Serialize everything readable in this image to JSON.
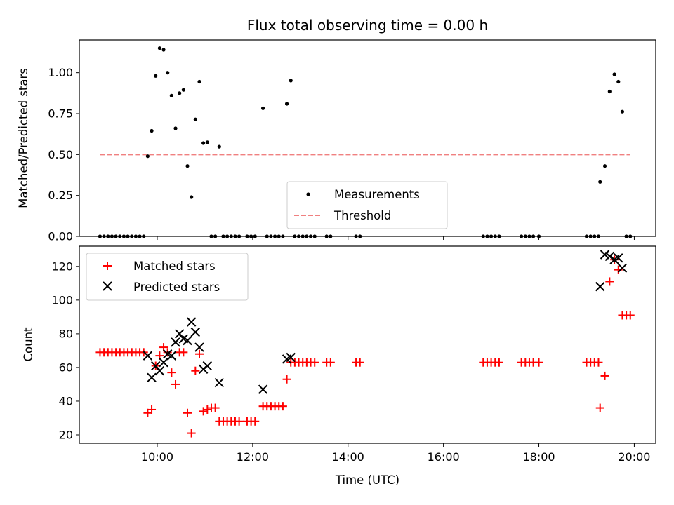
{
  "chart_data": [
    {
      "type": "scatter",
      "title": "Flux total observing time = 0.00 h",
      "xlabel": "",
      "ylabel": "Matched/Predicted stars",
      "ylim": [
        0,
        1.2
      ],
      "yticks": [
        "0.00",
        "0.25",
        "0.50",
        "0.75",
        "1.00"
      ],
      "xlim": [
        "08:22",
        "20:27"
      ],
      "legend_location": "lower-center",
      "series": [
        {
          "name": "Measurements",
          "marker": "dot",
          "color": "#000000",
          "points": [
            [
              "08:48",
              0
            ],
            [
              "08:53",
              0
            ],
            [
              "08:58",
              0
            ],
            [
              "09:03",
              0
            ],
            [
              "09:08",
              0
            ],
            [
              "09:13",
              0
            ],
            [
              "09:18",
              0
            ],
            [
              "09:23",
              0
            ],
            [
              "09:28",
              0
            ],
            [
              "09:33",
              0
            ],
            [
              "09:38",
              0
            ],
            [
              "09:43",
              0
            ],
            [
              "09:48",
              0.49
            ],
            [
              "09:53",
              0.645
            ],
            [
              "09:58",
              0.98
            ],
            [
              "10:03",
              1.15
            ],
            [
              "10:08",
              1.14
            ],
            [
              "10:13",
              1.0
            ],
            [
              "10:18",
              0.86
            ],
            [
              "10:23",
              0.66
            ],
            [
              "10:28",
              0.875
            ],
            [
              "10:33",
              0.895
            ],
            [
              "10:38",
              0.43
            ],
            [
              "10:43",
              0.24
            ],
            [
              "10:48",
              0.715
            ],
            [
              "10:53",
              0.945
            ],
            [
              "10:58",
              0.57
            ],
            [
              "11:03",
              0.575
            ],
            [
              "11:08",
              0
            ],
            [
              "11:13",
              0
            ],
            [
              "11:18",
              0.548
            ],
            [
              "11:23",
              0
            ],
            [
              "11:28",
              0
            ],
            [
              "11:33",
              0
            ],
            [
              "11:38",
              0
            ],
            [
              "11:43",
              0
            ],
            [
              "11:53",
              0
            ],
            [
              "11:58",
              0
            ],
            [
              "12:03",
              0
            ],
            [
              "12:13",
              0.783
            ],
            [
              "12:18",
              0
            ],
            [
              "12:23",
              0
            ],
            [
              "12:28",
              0
            ],
            [
              "12:33",
              0
            ],
            [
              "12:38",
              0
            ],
            [
              "12:43",
              0.81
            ],
            [
              "12:48",
              0.952
            ],
            [
              "12:53",
              0
            ],
            [
              "12:58",
              0
            ],
            [
              "13:03",
              0
            ],
            [
              "13:08",
              0
            ],
            [
              "13:13",
              0
            ],
            [
              "13:18",
              0
            ],
            [
              "13:33",
              0
            ],
            [
              "13:38",
              0
            ],
            [
              "14:10",
              0
            ],
            [
              "14:15",
              0
            ],
            [
              "16:50",
              0
            ],
            [
              "16:55",
              0
            ],
            [
              "17:00",
              0
            ],
            [
              "17:05",
              0
            ],
            [
              "17:10",
              0
            ],
            [
              "17:38",
              0
            ],
            [
              "17:43",
              0
            ],
            [
              "17:48",
              0
            ],
            [
              "17:53",
              0
            ],
            [
              "18:00",
              0
            ],
            [
              "19:00",
              0
            ],
            [
              "19:05",
              0
            ],
            [
              "19:10",
              0
            ],
            [
              "19:15",
              0
            ],
            [
              "19:17",
              0.333
            ],
            [
              "19:23",
              0.43
            ],
            [
              "19:29",
              0.885
            ],
            [
              "19:35",
              0.99
            ],
            [
              "19:40",
              0.945
            ],
            [
              "19:45",
              0.762
            ],
            [
              "19:50",
              0
            ],
            [
              "19:55",
              0
            ]
          ]
        },
        {
          "name": "Threshold",
          "marker": "dashed-line",
          "color": "#f08080",
          "points": [
            [
              "08:48",
              0.5
            ],
            [
              "19:55",
              0.5
            ]
          ]
        }
      ]
    },
    {
      "type": "scatter",
      "title": "",
      "xlabel": "Time (UTC)",
      "ylabel": "Count",
      "ylim": [
        15,
        132
      ],
      "yticks": [
        20,
        40,
        60,
        80,
        100,
        120
      ],
      "xlim": [
        "08:22",
        "20:27"
      ],
      "xticks": [
        "10:00",
        "12:00",
        "14:00",
        "16:00",
        "18:00",
        "20:00"
      ],
      "legend_location": "upper-left",
      "series": [
        {
          "name": "Matched stars",
          "marker": "plus",
          "color": "#ff0000",
          "points": [
            [
              "08:48",
              69
            ],
            [
              "08:53",
              69
            ],
            [
              "08:58",
              69
            ],
            [
              "09:03",
              69
            ],
            [
              "09:08",
              69
            ],
            [
              "09:13",
              69
            ],
            [
              "09:18",
              69
            ],
            [
              "09:23",
              69
            ],
            [
              "09:28",
              69
            ],
            [
              "09:33",
              69
            ],
            [
              "09:38",
              69
            ],
            [
              "09:43",
              69
            ],
            [
              "09:48",
              33
            ],
            [
              "09:53",
              35
            ],
            [
              "09:58",
              61
            ],
            [
              "10:03",
              67
            ],
            [
              "10:08",
              72
            ],
            [
              "10:13",
              69
            ],
            [
              "10:18",
              57
            ],
            [
              "10:23",
              50
            ],
            [
              "10:28",
              69
            ],
            [
              "10:33",
              69
            ],
            [
              "10:38",
              33
            ],
            [
              "10:43",
              21
            ],
            [
              "10:48",
              58
            ],
            [
              "10:53",
              68
            ],
            [
              "10:58",
              34
            ],
            [
              "11:03",
              35
            ],
            [
              "11:08",
              36
            ],
            [
              "11:13",
              36
            ],
            [
              "11:18",
              28
            ],
            [
              "11:23",
              28
            ],
            [
              "11:28",
              28
            ],
            [
              "11:33",
              28
            ],
            [
              "11:38",
              28
            ],
            [
              "11:43",
              28
            ],
            [
              "11:53",
              28
            ],
            [
              "11:58",
              28
            ],
            [
              "12:03",
              28
            ],
            [
              "12:13",
              37
            ],
            [
              "12:18",
              37
            ],
            [
              "12:23",
              37
            ],
            [
              "12:28",
              37
            ],
            [
              "12:33",
              37
            ],
            [
              "12:38",
              37
            ],
            [
              "12:43",
              53
            ],
            [
              "12:48",
              63
            ],
            [
              "12:53",
              63
            ],
            [
              "12:58",
              63
            ],
            [
              "13:03",
              63
            ],
            [
              "13:08",
              63
            ],
            [
              "13:13",
              63
            ],
            [
              "13:18",
              63
            ],
            [
              "13:33",
              63
            ],
            [
              "13:38",
              63
            ],
            [
              "14:10",
              63
            ],
            [
              "14:15",
              63
            ],
            [
              "16:50",
              63
            ],
            [
              "16:55",
              63
            ],
            [
              "17:00",
              63
            ],
            [
              "17:05",
              63
            ],
            [
              "17:10",
              63
            ],
            [
              "17:38",
              63
            ],
            [
              "17:43",
              63
            ],
            [
              "17:48",
              63
            ],
            [
              "17:53",
              63
            ],
            [
              "18:00",
              63
            ],
            [
              "19:00",
              63
            ],
            [
              "19:05",
              63
            ],
            [
              "19:10",
              63
            ],
            [
              "19:15",
              63
            ],
            [
              "19:17",
              36
            ],
            [
              "19:23",
              55
            ],
            [
              "19:29",
              111
            ],
            [
              "19:35",
              124
            ],
            [
              "19:40",
              118
            ],
            [
              "19:45",
              91
            ],
            [
              "19:50",
              91
            ],
            [
              "19:55",
              91
            ]
          ]
        },
        {
          "name": "Predicted stars",
          "marker": "x",
          "color": "#000000",
          "points": [
            [
              "09:48",
              67
            ],
            [
              "09:53",
              54
            ],
            [
              "09:58",
              61
            ],
            [
              "10:03",
              58
            ],
            [
              "10:08",
              63
            ],
            [
              "10:13",
              68
            ],
            [
              "10:18",
              67
            ],
            [
              "10:23",
              75
            ],
            [
              "10:28",
              80
            ],
            [
              "10:33",
              77
            ],
            [
              "10:38",
              76
            ],
            [
              "10:43",
              87
            ],
            [
              "10:48",
              81
            ],
            [
              "10:53",
              72
            ],
            [
              "10:58",
              59
            ],
            [
              "11:03",
              61
            ],
            [
              "11:18",
              51
            ],
            [
              "12:13",
              47
            ],
            [
              "12:43",
              65
            ],
            [
              "12:48",
              66
            ],
            [
              "19:17",
              108
            ],
            [
              "19:23",
              127
            ],
            [
              "19:29",
              126
            ],
            [
              "19:35",
              124
            ],
            [
              "19:40",
              125
            ],
            [
              "19:45",
              119
            ]
          ]
        }
      ]
    }
  ]
}
